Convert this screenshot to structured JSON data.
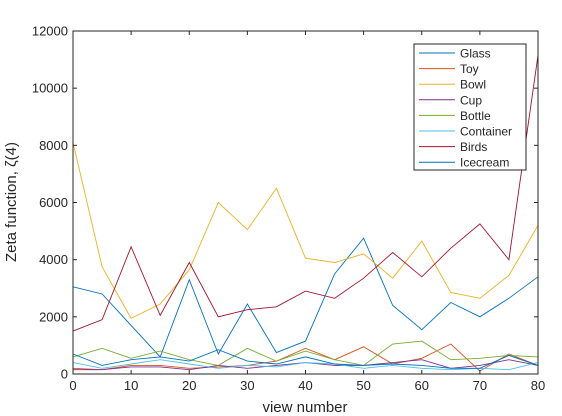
{
  "chart_data": {
    "type": "line",
    "xlabel": "view number",
    "ylabel": "Zeta function, ζ(4)",
    "xlim": [
      0,
      80
    ],
    "ylim": [
      0,
      12000
    ],
    "x_ticks": [
      0,
      10,
      20,
      30,
      40,
      50,
      60,
      70,
      80
    ],
    "y_ticks": [
      0,
      2000,
      4000,
      6000,
      8000,
      10000,
      12000
    ],
    "grid": false,
    "legend_position": "top-right",
    "x": [
      0,
      5,
      10,
      15,
      20,
      25,
      30,
      35,
      40,
      45,
      50,
      55,
      60,
      65,
      70,
      75,
      80
    ],
    "series": [
      {
        "name": "Glass",
        "color": "#0072BD",
        "values": [
          3050,
          2800,
          1700,
          600,
          3300,
          700,
          2450,
          750,
          1150,
          3500,
          4750,
          2400,
          1550,
          2500,
          2000,
          2650,
          3400
        ]
      },
      {
        "name": "Toy",
        "color": "#D95319",
        "values": [
          200,
          150,
          300,
          300,
          200,
          250,
          300,
          450,
          900,
          500,
          950,
          350,
          550,
          1050,
          100,
          700,
          300
        ]
      },
      {
        "name": "Bowl",
        "color": "#EDB120",
        "values": [
          8100,
          3750,
          1950,
          2450,
          3650,
          6000,
          5050,
          6500,
          4050,
          3900,
          4200,
          3350,
          4650,
          2850,
          2650,
          3450,
          5200
        ]
      },
      {
        "name": "Cup",
        "color": "#7E2F8E",
        "values": [
          150,
          150,
          250,
          250,
          150,
          300,
          200,
          300,
          400,
          300,
          300,
          400,
          500,
          200,
          300,
          500,
          300
        ]
      },
      {
        "name": "Bottle",
        "color": "#77AC30",
        "values": [
          600,
          900,
          550,
          800,
          500,
          300,
          900,
          450,
          800,
          500,
          300,
          1050,
          1150,
          500,
          550,
          650,
          600
        ]
      },
      {
        "name": "Container",
        "color": "#4DBEEE",
        "values": [
          400,
          200,
          350,
          500,
          350,
          200,
          300,
          250,
          400,
          350,
          200,
          300,
          200,
          150,
          200,
          150,
          400
        ]
      },
      {
        "name": "Birds",
        "color": "#A2142F",
        "values": [
          1500,
          1900,
          4450,
          2050,
          3900,
          2000,
          2250,
          2350,
          2900,
          2650,
          3350,
          4250,
          3400,
          4400,
          5250,
          4000,
          11150
        ]
      },
      {
        "name": "Icecream",
        "color": "#0072BD",
        "values": [
          700,
          300,
          500,
          600,
          450,
          850,
          450,
          350,
          600,
          350,
          300,
          350,
          300,
          200,
          200,
          650,
          300
        ]
      }
    ]
  }
}
